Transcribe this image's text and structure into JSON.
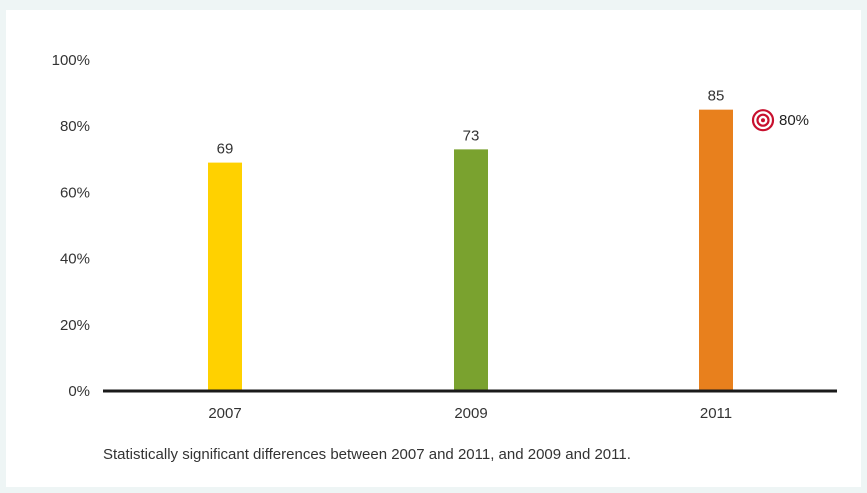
{
  "chart_data": {
    "type": "bar",
    "categories": [
      "2007",
      "2009",
      "2011"
    ],
    "values": [
      69,
      73,
      85
    ],
    "value_labels": [
      "69",
      "73",
      "85"
    ],
    "bar_colors": [
      "#ffd100",
      "#7aa22f",
      "#e8801d"
    ],
    "ylim": [
      0,
      100
    ],
    "yticks": [
      0,
      20,
      40,
      60,
      80,
      100
    ],
    "ytick_labels": [
      "0%",
      "20%",
      "40%",
      "60%",
      "80%",
      "100%"
    ],
    "grid": false,
    "target": {
      "value": 80,
      "label": "80%",
      "icon": "target-icon",
      "color": "#c8102e"
    },
    "footnote": "Statistically significant differences between 2007 and 2011, and 2009 and 2011."
  }
}
